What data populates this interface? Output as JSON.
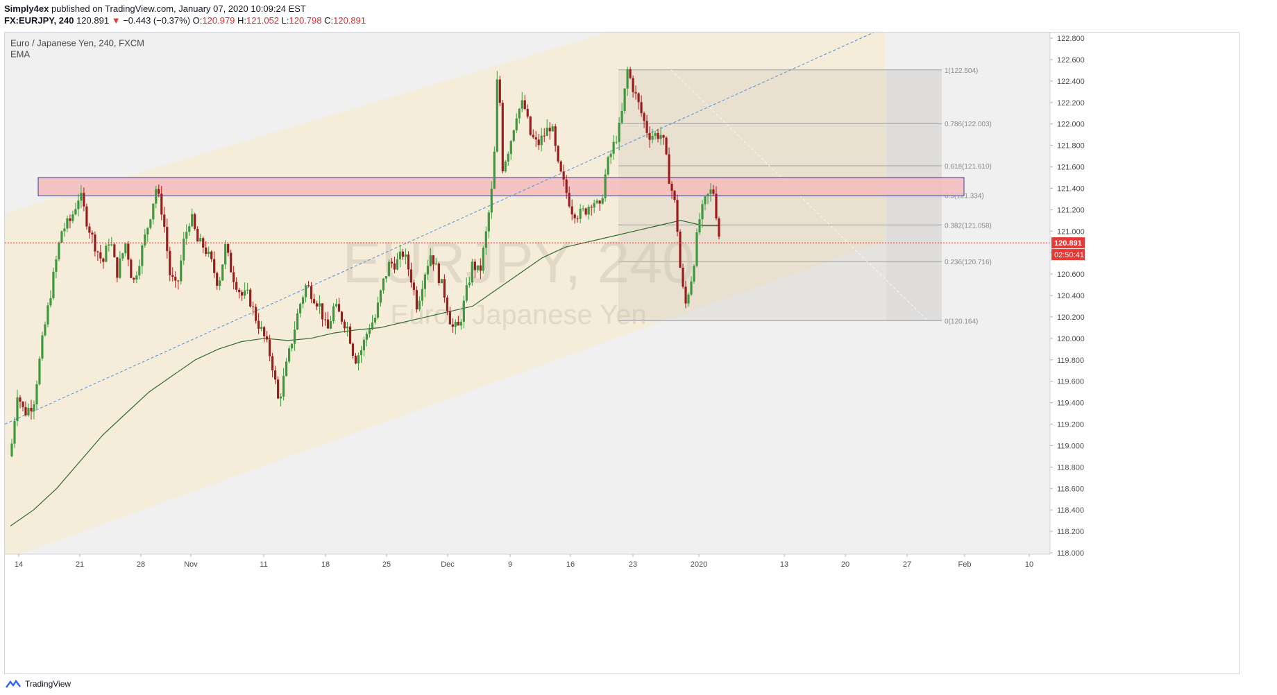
{
  "header": {
    "publisher": "Simply4ex",
    "published_text": "published on TradingView.com, January 07, 2020 10:09:24 EST",
    "symbol": "FX:EURJPY, 240",
    "last": "120.891",
    "change_arrow": "▼",
    "change": "−0.443 (−0.37%)",
    "o_label": "O:",
    "o_value": "120.979",
    "h_label": "H:",
    "h_value": "121.052",
    "l_label": "L:",
    "l_value": "120.798",
    "c_label": "C:",
    "c_value": "120.891"
  },
  "legend": {
    "instrument": "Euro / Japanese Yen, 240, FXCM",
    "indicator": "EMA"
  },
  "watermark": {
    "ticker": "EURJPY, 240",
    "name": "Euro / Japanese Yen"
  },
  "price_badges": {
    "last_price": "120.891",
    "countdown": "02:50:41"
  },
  "fib_levels": [
    {
      "label": "1(122.504)",
      "value": 122.504
    },
    {
      "label": "0.786(122.003)",
      "value": 122.003
    },
    {
      "label": "0.618(121.610)",
      "value": 121.61
    },
    {
      "label": "0.5(121.334)",
      "value": 121.334
    },
    {
      "label": "0.382(121.058)",
      "value": 121.058
    },
    {
      "label": "0.236(120.716)",
      "value": 120.716
    },
    {
      "label": "0(120.164)",
      "value": 120.164
    }
  ],
  "resistance_zone": {
    "low": 121.33,
    "high": 121.5
  },
  "colors": {
    "up": "#3c9a3c",
    "down": "#9e1b1b",
    "ema": "#2e6b2e",
    "channel": "#f5ecd9",
    "zone": "#f4bcbc",
    "trendline": "#4a90d9",
    "current": "#e53935"
  },
  "footer": {
    "brand": "TradingView"
  },
  "chart_data": {
    "type": "candlestick",
    "title": "Euro / Japanese Yen, 240, FXCM",
    "ylim": [
      118.0,
      122.9
    ],
    "y_ticks": [
      "122.800",
      "122.600",
      "122.400",
      "122.200",
      "122.000",
      "121.800",
      "121.600",
      "121.400",
      "121.200",
      "121.000",
      "120.800",
      "120.600",
      "120.400",
      "120.200",
      "120.000",
      "119.800",
      "119.600",
      "119.400",
      "119.200",
      "119.000",
      "118.800",
      "118.600",
      "118.400",
      "118.200",
      "118.000"
    ],
    "x_ticks": [
      "14",
      "21",
      "28",
      "Nov",
      "11",
      "18",
      "25",
      "Dec",
      "9",
      "16",
      "23",
      "2020",
      "13",
      "20",
      "27",
      "Feb",
      "10"
    ],
    "close_path": [
      [
        0,
        118.9
      ],
      [
        0.3,
        119.5
      ],
      [
        0.6,
        119.3
      ],
      [
        1.0,
        119.4
      ],
      [
        1.4,
        120.0
      ],
      [
        1.8,
        120.5
      ],
      [
        2.2,
        121.0
      ],
      [
        2.6,
        121.1
      ],
      [
        3.0,
        121.35
      ],
      [
        3.3,
        121.1
      ],
      [
        3.6,
        120.9
      ],
      [
        4.0,
        120.7
      ],
      [
        4.3,
        120.95
      ],
      [
        4.6,
        120.6
      ],
      [
        5.0,
        120.9
      ],
      [
        5.3,
        120.5
      ],
      [
        5.6,
        120.75
      ],
      [
        6.0,
        121.1
      ],
      [
        6.3,
        121.4
      ],
      [
        6.6,
        121.15
      ],
      [
        6.9,
        120.6
      ],
      [
        7.2,
        120.45
      ],
      [
        7.5,
        120.9
      ],
      [
        7.8,
        121.15
      ],
      [
        8.1,
        120.9
      ],
      [
        8.4,
        120.85
      ],
      [
        8.7,
        120.7
      ],
      [
        9.0,
        120.5
      ],
      [
        9.3,
        120.85
      ],
      [
        9.6,
        120.6
      ],
      [
        10.0,
        120.4
      ],
      [
        10.3,
        120.4
      ],
      [
        10.6,
        120.2
      ],
      [
        11.0,
        120.0
      ],
      [
        11.3,
        119.8
      ],
      [
        11.6,
        119.4
      ],
      [
        11.9,
        119.7
      ],
      [
        12.2,
        120.0
      ],
      [
        12.5,
        120.3
      ],
      [
        12.8,
        120.5
      ],
      [
        13.1,
        120.4
      ],
      [
        13.4,
        120.3
      ],
      [
        13.7,
        120.05
      ],
      [
        14.0,
        120.3
      ],
      [
        14.3,
        120.2
      ],
      [
        14.6,
        120.1
      ],
      [
        14.9,
        119.8
      ],
      [
        15.2,
        119.9
      ],
      [
        15.5,
        120.1
      ],
      [
        15.8,
        120.2
      ],
      [
        16.1,
        120.5
      ],
      [
        16.4,
        120.7
      ],
      [
        16.7,
        120.7
      ],
      [
        17.0,
        120.8
      ],
      [
        17.3,
        120.6
      ],
      [
        17.6,
        120.3
      ],
      [
        17.9,
        120.6
      ],
      [
        18.2,
        120.8
      ],
      [
        18.5,
        120.6
      ],
      [
        18.8,
        120.4
      ],
      [
        19.1,
        120.1
      ],
      [
        19.4,
        120.1
      ],
      [
        19.7,
        120.4
      ],
      [
        20.0,
        120.7
      ],
      [
        20.3,
        120.6
      ],
      [
        20.6,
        121.0
      ],
      [
        20.9,
        121.5
      ],
      [
        21.1,
        122.6
      ],
      [
        21.3,
        121.6
      ],
      [
        21.6,
        121.8
      ],
      [
        21.9,
        122.1
      ],
      [
        22.2,
        122.2
      ],
      [
        22.5,
        121.9
      ],
      [
        22.8,
        121.8
      ],
      [
        23.1,
        121.9
      ],
      [
        23.4,
        122.0
      ],
      [
        23.7,
        121.6
      ],
      [
        24.0,
        121.4
      ],
      [
        24.3,
        121.2
      ],
      [
        24.6,
        121.15
      ],
      [
        24.9,
        121.2
      ],
      [
        25.2,
        121.3
      ],
      [
        25.5,
        121.2
      ],
      [
        25.8,
        121.6
      ],
      [
        26.1,
        121.8
      ],
      [
        26.4,
        122.0
      ],
      [
        26.7,
        122.5
      ],
      [
        27.0,
        122.3
      ],
      [
        27.3,
        122.1
      ],
      [
        27.6,
        121.9
      ],
      [
        27.9,
        121.9
      ],
      [
        28.2,
        121.9
      ],
      [
        28.5,
        121.5
      ],
      [
        28.8,
        121.2
      ],
      [
        29.0,
        120.6
      ],
      [
        29.2,
        120.3
      ],
      [
        29.5,
        120.6
      ],
      [
        29.8,
        121.1
      ],
      [
        30.1,
        121.3
      ],
      [
        30.4,
        121.4
      ],
      [
        30.7,
        120.9
      ]
    ],
    "ema_path": [
      [
        0,
        118.25
      ],
      [
        1.0,
        118.4
      ],
      [
        2.0,
        118.6
      ],
      [
        3.0,
        118.85
      ],
      [
        4.0,
        119.1
      ],
      [
        5.0,
        119.3
      ],
      [
        6.0,
        119.5
      ],
      [
        7.0,
        119.65
      ],
      [
        8.0,
        119.8
      ],
      [
        9.0,
        119.9
      ],
      [
        10.0,
        119.97
      ],
      [
        11.0,
        120.0
      ],
      [
        12.0,
        119.98
      ],
      [
        13.0,
        120.0
      ],
      [
        14.0,
        120.05
      ],
      [
        15.0,
        120.08
      ],
      [
        16.0,
        120.1
      ],
      [
        17.0,
        120.15
      ],
      [
        18.0,
        120.2
      ],
      [
        19.0,
        120.25
      ],
      [
        20.0,
        120.3
      ],
      [
        21.0,
        120.45
      ],
      [
        22.0,
        120.6
      ],
      [
        23.0,
        120.75
      ],
      [
        24.0,
        120.85
      ],
      [
        25.0,
        120.9
      ],
      [
        26.0,
        120.95
      ],
      [
        27.0,
        121.0
      ],
      [
        28.0,
        121.05
      ],
      [
        29.0,
        121.1
      ],
      [
        30.0,
        121.05
      ],
      [
        30.7,
        121.05
      ]
    ]
  }
}
